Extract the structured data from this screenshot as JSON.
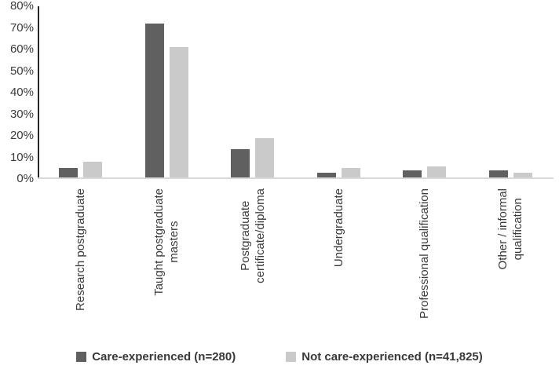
{
  "chart_data": {
    "type": "bar",
    "title": "",
    "xlabel": "",
    "ylabel": "",
    "categories": [
      "Research postgraduate",
      "Taught postgraduate\nmasters",
      "Postgraduate\ncertificate/diploma",
      "Undergraduate",
      "Professional qualification",
      "Other / informal\nqualification"
    ],
    "series": [
      {
        "name": "Care-experienced (n=280)",
        "color": "#606060",
        "values": [
          5,
          72,
          14,
          3,
          4,
          4
        ]
      },
      {
        "name": "Not care-experienced (n=41,825)",
        "color": "#cacaca",
        "values": [
          8,
          61,
          19,
          5,
          6,
          3
        ]
      }
    ],
    "ylim": [
      0,
      80
    ],
    "ytick_step": 10,
    "ytick_labels": [
      "0%",
      "10%",
      "20%",
      "30%",
      "40%",
      "50%",
      "60%",
      "70%",
      "80%"
    ],
    "grid": false,
    "legend_position": "bottom"
  },
  "colors": {
    "axis_line": "#262626",
    "baseline": "#d9d9d9",
    "tick_text": "#3b3b3b",
    "legend_text": "#383838",
    "background": "#ffffff"
  }
}
